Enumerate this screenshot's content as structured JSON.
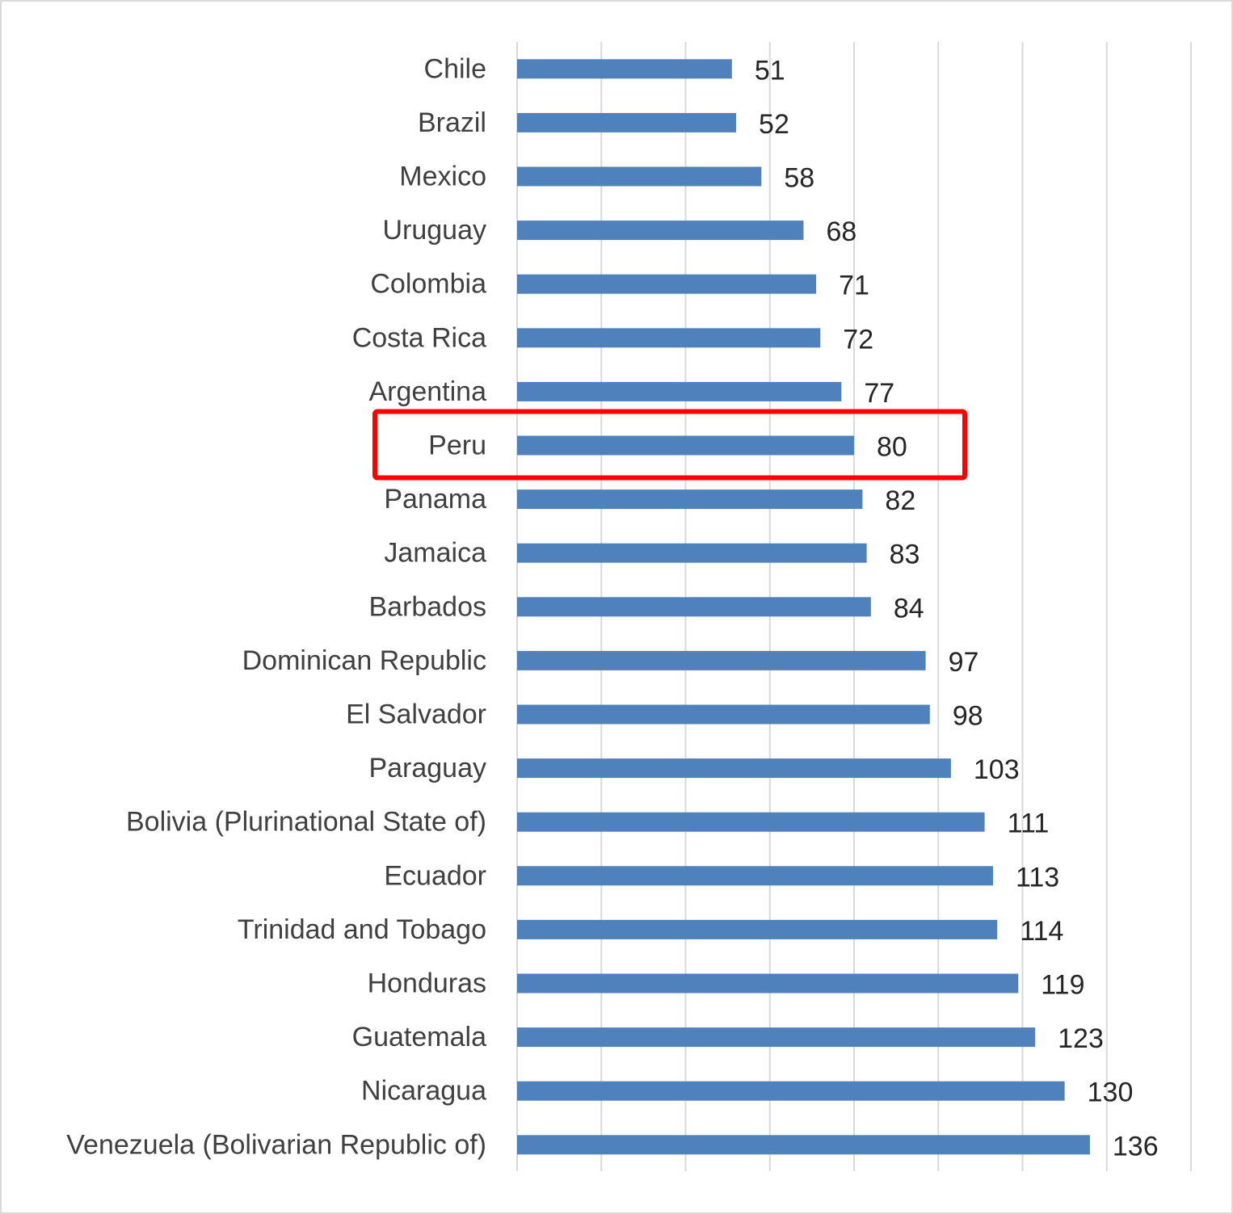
{
  "chart_data": {
    "type": "bar",
    "orientation": "horizontal",
    "categories": [
      "Chile",
      "Brazil",
      "Mexico",
      "Uruguay",
      "Colombia",
      "Costa Rica",
      "Argentina",
      "Peru",
      "Panama",
      "Jamaica",
      "Barbados",
      "Dominican Republic",
      "El Salvador",
      "Paraguay",
      "Bolivia (Plurinational State of)",
      "Ecuador",
      "Trinidad and Tobago",
      "Honduras",
      "Guatemala",
      "Nicaragua",
      "Venezuela (Bolivarian Republic of)"
    ],
    "values": [
      51,
      52,
      58,
      68,
      71,
      72,
      77,
      80,
      82,
      83,
      84,
      97,
      98,
      103,
      111,
      113,
      114,
      119,
      123,
      130,
      136
    ],
    "xlim": [
      0,
      160
    ],
    "x_gridline_step": 20,
    "grid": true,
    "x_tick_labels_shown": false,
    "data_labels": true,
    "bar_color": "#4f81bd",
    "highlight": {
      "category": "Peru",
      "color": "#ff0000"
    },
    "title": "",
    "xlabel": "",
    "ylabel": ""
  }
}
